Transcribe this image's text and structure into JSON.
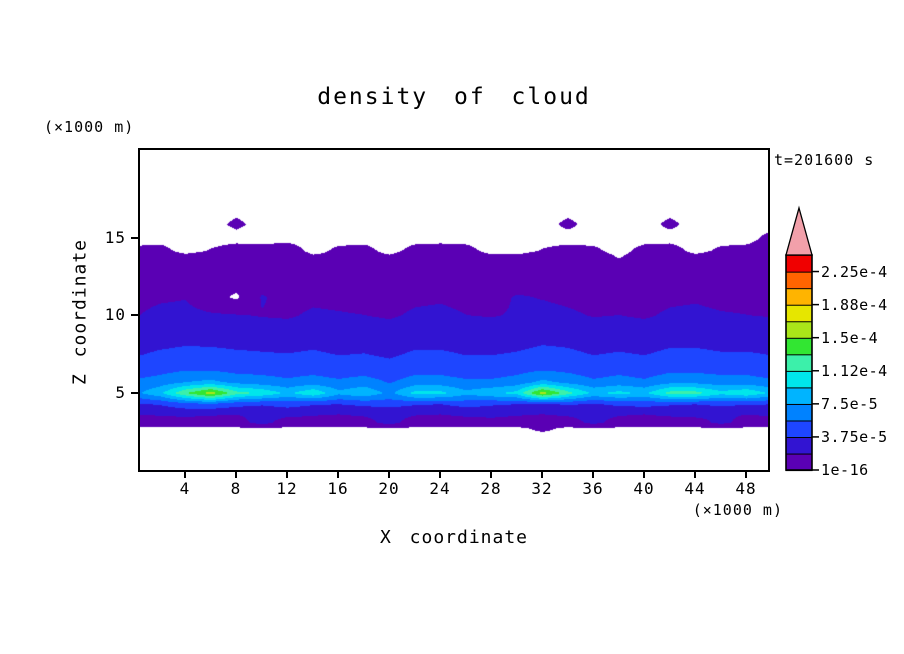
{
  "title": "density of cloud",
  "timestamp": "t=201600 s",
  "axes": {
    "x_label": "X coordinate",
    "x_unit": "(×1000 m)",
    "x_ticks": [
      4,
      8,
      12,
      16,
      20,
      24,
      28,
      32,
      36,
      40,
      44,
      48
    ],
    "y_label": "Z coordinate",
    "y_unit": "(×1000 m)",
    "y_ticks": [
      5,
      10,
      15
    ]
  },
  "colorbar": {
    "labels_top_to_bottom": [
      "2.25e-4",
      "1.88e-4",
      "1.5e-4",
      "1.12e-4",
      "7.5e-5",
      "3.75e-5",
      "1e-16"
    ],
    "colors_bottom_to_top": [
      "#5a00b4",
      "#3214d2",
      "#1e46ff",
      "#0082ff",
      "#00b4ff",
      "#00e6eb",
      "#3cf0aa",
      "#32e632",
      "#aae619",
      "#e6e600",
      "#ffb400",
      "#ff6400",
      "#f00000"
    ],
    "arrow_color": "#f2a0aa"
  },
  "chart_data": {
    "type": "heatmap",
    "title": "density of cloud",
    "xlabel": "X coordinate (×1000 m)",
    "ylabel": "Z coordinate (×1000 m)",
    "time": "t=201600 s",
    "xlim": [
      0.5,
      49.7
    ],
    "zlim": [
      0,
      20.6
    ],
    "contour_interval": 1.875e-05,
    "labeled_levels": [
      1e-16,
      3.75e-05,
      7.5e-05,
      0.0001125,
      0.00015,
      0.0001875,
      0.000225
    ],
    "value_scale": 1e-05,
    "x": [
      0,
      2,
      4,
      6,
      8,
      10,
      12,
      14,
      16,
      18,
      20,
      22,
      24,
      26,
      28,
      30,
      32,
      34,
      36,
      38,
      40,
      42,
      44,
      46,
      48,
      50
    ],
    "z": [
      0,
      2.3,
      2.7,
      3.1,
      3.7,
      4.3,
      5,
      5.7,
      6.5,
      7.5,
      8.7,
      10,
      11.2,
      12.4,
      13.4,
      14.2,
      15,
      15.9,
      17
    ],
    "values_by_z_row": [
      [
        0,
        0,
        0,
        0,
        0,
        0,
        0,
        0,
        0,
        0,
        0,
        0,
        0,
        0,
        0,
        0,
        0,
        0,
        0,
        0,
        0,
        0,
        0,
        0,
        0,
        0
      ],
      [
        0,
        0,
        0,
        0,
        0,
        0,
        0,
        0,
        0,
        0,
        0,
        0,
        0,
        0,
        0,
        0,
        0,
        0,
        0,
        0,
        0,
        0,
        0,
        0,
        0,
        0
      ],
      [
        0,
        0,
        0,
        0,
        0,
        0,
        0,
        0,
        0,
        0,
        0,
        0,
        0,
        0,
        0,
        0,
        0.5,
        0,
        0,
        0,
        0,
        0,
        0,
        0,
        0,
        0
      ],
      [
        1.0,
        1.0,
        0.9,
        1.0,
        1.1,
        2.6,
        0.9,
        1.0,
        1.0,
        1.1,
        2.6,
        0.9,
        1.0,
        1.0,
        1.1,
        1.0,
        0.9,
        1.0,
        2.4,
        1.1,
        1.0,
        0.9,
        1.0,
        2.4,
        1.1,
        1.0
      ],
      [
        2.0,
        2.2,
        2.5,
        2.2,
        2.0,
        2.4,
        2.6,
        2.2,
        2.0,
        2.3,
        2.5,
        2.2,
        2.0,
        2.4,
        2.6,
        2.2,
        2.0,
        2.3,
        2.5,
        2.2,
        2.0,
        2.4,
        2.6,
        2.2,
        2.0,
        2.3
      ],
      [
        3.5,
        4.0,
        5.0,
        5.5,
        4.5,
        4.0,
        4.5,
        4.0,
        3.8,
        4.2,
        4.5,
        4.0,
        3.8,
        4.5,
        4.0,
        3.8,
        3.5,
        4.0,
        3.6,
        4.2,
        4.5,
        4.0,
        3.8,
        4.2,
        4.0,
        3.8
      ],
      [
        7,
        9,
        13,
        16,
        12,
        11,
        9,
        11,
        8,
        9,
        7,
        10,
        10,
        8,
        9,
        10,
        16,
        12,
        9,
        10,
        9,
        12,
        12,
        10,
        11,
        9
      ],
      [
        6,
        6.5,
        7.5,
        8,
        7,
        6.5,
        6,
        6.5,
        6,
        6.5,
        5.5,
        6.5,
        6.5,
        6,
        6,
        6.5,
        8,
        7,
        6,
        6.5,
        6,
        7,
        7,
        6.5,
        6.5,
        6
      ],
      [
        4.5,
        5,
        5.5,
        5.5,
        5,
        5,
        4.8,
        5,
        4.6,
        4.8,
        4.4,
        5,
        5,
        4.6,
        4.6,
        5,
        5.5,
        5.2,
        4.6,
        5,
        4.6,
        5.2,
        5.2,
        5,
        5,
        4.6
      ],
      [
        3.6,
        4,
        4.2,
        4.2,
        4,
        3.9,
        3.8,
        4,
        3.7,
        3.8,
        3.5,
        4,
        4,
        3.7,
        3.7,
        3.9,
        4.3,
        4.1,
        3.7,
        3.9,
        3.7,
        4.1,
        4.1,
        3.9,
        3.9,
        3.7
      ],
      [
        2.8,
        3,
        3.2,
        3.1,
        3,
        2.9,
        2.8,
        3,
        2.8,
        2.9,
        2.7,
        3,
        3,
        2.8,
        2.8,
        2.9,
        3.2,
        3.1,
        2.8,
        2.9,
        2.8,
        3.1,
        3.1,
        2.9,
        2.9,
        2.8
      ],
      [
        1.8,
        2.2,
        2.3,
        2.1,
        2.0,
        1.8,
        1.7,
        2.1,
        2.0,
        1.9,
        1.7,
        2.1,
        2.2,
        1.9,
        1.8,
        2.0,
        2.3,
        2.1,
        1.8,
        1.9,
        1.7,
        2.1,
        2.2,
        2.0,
        1.9,
        1.8
      ],
      [
        1.5,
        1.7,
        1.8,
        0.8,
        0,
        2.0,
        1.4,
        1.6,
        1.5,
        1.4,
        1.3,
        1.6,
        1.7,
        1.5,
        1.4,
        2.0,
        1.8,
        1.6,
        1.4,
        1.5,
        1.4,
        1.6,
        1.7,
        1.5,
        1.5,
        1.4
      ],
      [
        1.1,
        1.2,
        1.3,
        1.2,
        1.1,
        1.0,
        1.0,
        1.2,
        1.1,
        1.0,
        1.0,
        1.2,
        1.2,
        1.1,
        1.0,
        1.1,
        1.3,
        1.2,
        1.0,
        1.1,
        1.0,
        1.2,
        1.2,
        1.1,
        1.1,
        1.0
      ],
      [
        0.9,
        1.0,
        1.0,
        0.9,
        0.8,
        0.9,
        1.0,
        0.8,
        0.4,
        0.5,
        0.8,
        0.9,
        0.5,
        0.8,
        0.9,
        0.9,
        0.8,
        0.9,
        0.9,
        0.4,
        0.8,
        0.9,
        1.0,
        0.9,
        0.8,
        0.9
      ],
      [
        0.4,
        0.5,
        0,
        0.3,
        0.6,
        0.5,
        0.7,
        0,
        0.4,
        0.5,
        0,
        0.5,
        0.6,
        0.5,
        0,
        0,
        0.3,
        0.5,
        0.4,
        0,
        0.5,
        0.6,
        0,
        0.4,
        0.5,
        0.6
      ],
      [
        0,
        0,
        0,
        0,
        0,
        0,
        0,
        0,
        0,
        0,
        0,
        0,
        0,
        0,
        0,
        0,
        0,
        0,
        0,
        0,
        0,
        0,
        0,
        0,
        0,
        0.5
      ],
      [
        0,
        0,
        0,
        0,
        0.4,
        0,
        0,
        0,
        0,
        0,
        0,
        0,
        0,
        0,
        0,
        0,
        0,
        0.4,
        0,
        0,
        0,
        0.4,
        0,
        0,
        0,
        0
      ],
      [
        0,
        0,
        0,
        0,
        0,
        0,
        0,
        0,
        0,
        0,
        0,
        0,
        0,
        0,
        0,
        0,
        0,
        0,
        0,
        0,
        0,
        0,
        0,
        0,
        0,
        0
      ]
    ]
  }
}
